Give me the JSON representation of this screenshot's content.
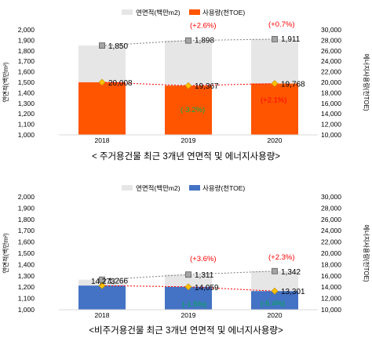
{
  "colors": {
    "area_bar": "#e7e6e6",
    "usage_bar_residential": "#ff5500",
    "usage_bar_nonresidential": "#4472c4",
    "line": "#7f7f7f",
    "usage_line": "#ff0000",
    "marker_area": "#a5a5a5",
    "marker_usage": "#ffc000",
    "increase_text": "#ff0000",
    "decrease_text": "#00b050"
  },
  "chart_data": [
    {
      "type": "bar",
      "title": "< 주거용건물 최근 3개년 연면적 및 에너지사용량>",
      "categories": [
        "2018",
        "2019",
        "2020"
      ],
      "ylabel": "연면적(백만m²)",
      "y2label": "에너지사용량(천TOE)",
      "ylim": [
        1000,
        2000
      ],
      "y_ticks": [
        "1,000",
        "1,100",
        "1,200",
        "1,300",
        "1,400",
        "1,500",
        "1,600",
        "1,700",
        "1,800",
        "1,900",
        "2,000"
      ],
      "y2lim": [
        10000,
        30000
      ],
      "y2_ticks": [
        "10,000",
        "12,000",
        "14,000",
        "16,000",
        "18,000",
        "20,000",
        "22,000",
        "24,000",
        "26,000",
        "28,000",
        "30,000"
      ],
      "legend_position": "top",
      "series": [
        {
          "name": "연면적(백만m2)",
          "axis": "left",
          "values": [
            1850,
            1898,
            1911
          ],
          "labels": [
            "1,850",
            "1,898",
            "1,911"
          ]
        },
        {
          "name": "사용량(천TOE)",
          "axis": "right",
          "values": [
            20008,
            19367,
            19768
          ],
          "labels": [
            "20,008",
            "19,367",
            "19,768"
          ]
        }
      ],
      "annotations": {
        "area_change": [
          "",
          "(+2.6%)",
          "(+0.7%)"
        ],
        "usage_change": [
          "",
          "(-3.2%)",
          "(+2.1%)"
        ]
      }
    },
    {
      "type": "bar",
      "title": "<비주거용건물 최근 3개년 연면적 및 에너지사용량>",
      "categories": [
        "2018",
        "2019",
        "2020"
      ],
      "ylabel": "연면적(백만m²)",
      "y2label": "에너지사용량(천TOE)",
      "ylim": [
        1000,
        2000
      ],
      "y_ticks": [
        "1,000",
        "1,100",
        "1,200",
        "1,300",
        "1,400",
        "1,500",
        "1,600",
        "1,700",
        "1,800",
        "1,900",
        "2,000"
      ],
      "y2lim": [
        10000,
        30000
      ],
      "y2_ticks": [
        "10,000",
        "12,000",
        "14,000",
        "16,000",
        "18,000",
        "20,000",
        "22,000",
        "24,000",
        "26,000",
        "28,000",
        "30,000"
      ],
      "legend_position": "top",
      "series": [
        {
          "name": "연면적(백만m2)",
          "axis": "left",
          "values": [
            1266,
            1311,
            1342
          ],
          "labels": [
            "1,266",
            "1,311",
            "1,342"
          ]
        },
        {
          "name": "사용량(천TOE)",
          "axis": "right",
          "values": [
            14273,
            14059,
            13301
          ],
          "labels": [
            "14,273",
            "14,059",
            "13,301"
          ]
        }
      ],
      "annotations": {
        "area_change": [
          "",
          "(+3.6%)",
          "(+2.3%)"
        ],
        "usage_change": [
          "",
          "(-1.5%)",
          "(-5.4%)"
        ]
      }
    }
  ]
}
